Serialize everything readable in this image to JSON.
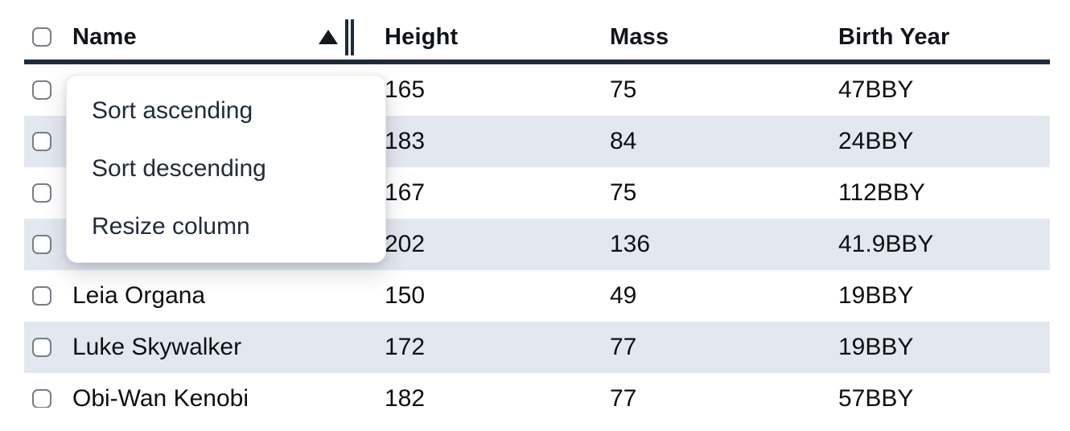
{
  "table": {
    "sort": {
      "column": "Name",
      "direction": "ascending"
    },
    "columns": [
      {
        "key": "name",
        "label": "Name"
      },
      {
        "key": "height",
        "label": "Height"
      },
      {
        "key": "mass",
        "label": "Mass"
      },
      {
        "key": "birth_year",
        "label": "Birth Year"
      }
    ],
    "rows": [
      {
        "name": "",
        "height": "165",
        "mass": "75",
        "birth_year": "47BBY"
      },
      {
        "name": "",
        "height": "183",
        "mass": "84",
        "birth_year": "24BBY"
      },
      {
        "name": "",
        "height": "167",
        "mass": "75",
        "birth_year": "112BBY"
      },
      {
        "name": "",
        "height": "202",
        "mass": "136",
        "birth_year": "41.9BBY"
      },
      {
        "name": "Leia Organa",
        "height": "150",
        "mass": "49",
        "birth_year": "19BBY"
      },
      {
        "name": "Luke Skywalker",
        "height": "172",
        "mass": "77",
        "birth_year": "19BBY"
      },
      {
        "name": "Obi-Wan Kenobi",
        "height": "182",
        "mass": "77",
        "birth_year": "57BBY"
      }
    ]
  },
  "context_menu": {
    "items": [
      {
        "label": "Sort ascending"
      },
      {
        "label": "Sort descending"
      },
      {
        "label": "Resize column"
      }
    ]
  },
  "icons": {
    "sort_indicator": "sort-ascending-triangle",
    "resize_handle": "column-resize-handle"
  },
  "colors": {
    "header_border": "#1e2b3b",
    "row_stripe": "#e3e7ef",
    "cell_text": "#0d0f12",
    "menu_text": "#212b3a",
    "checkbox_border": "#787d86"
  }
}
